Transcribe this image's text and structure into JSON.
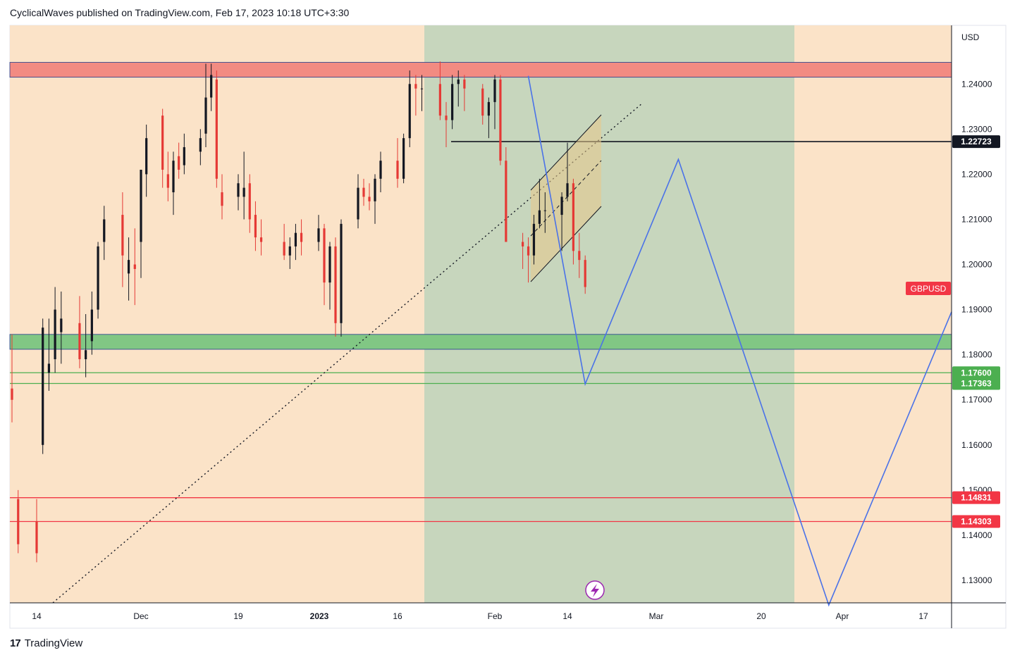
{
  "header": {
    "publisher_line": "CyclicalWaves published on TradingView.com, Feb 17, 2023 10:18 UTC+3:30"
  },
  "footer": {
    "brand": "TradingView",
    "logo_glyph": "17"
  },
  "chart_data": {
    "type": "candlestick",
    "symbol": "GBPUSD",
    "currency": "USD",
    "y_range": [
      1.125,
      1.253
    ],
    "y_ticks": [
      "1.24000",
      "1.23000",
      "1.22000",
      "1.21000",
      "1.20000",
      "1.19000",
      "1.18000",
      "1.17000",
      "1.16000",
      "1.15000",
      "1.14000",
      "1.13000"
    ],
    "x_ticks": [
      "14",
      "Dec",
      "19",
      "2023",
      "16",
      "Feb",
      "14",
      "Mar",
      "20",
      "Apr",
      "17"
    ],
    "x_tick_bold": [
      "2023"
    ],
    "price_labels": [
      {
        "value": "1.22723",
        "color": "#131722"
      },
      {
        "value": "1.17600",
        "color": "#4caf50"
      },
      {
        "value": "1.17363",
        "color": "#4caf50"
      },
      {
        "value": "1.14831",
        "color": "#f23645"
      },
      {
        "value": "1.14303",
        "color": "#f23645"
      }
    ],
    "symbol_badge_color": "#f23645",
    "zones": [
      {
        "name": "resistance",
        "from": 1.2415,
        "to": 1.2448,
        "color": "#f28b82"
      },
      {
        "name": "support",
        "from": 1.1812,
        "to": 1.1845,
        "color": "#81c784"
      }
    ],
    "horizontal_lines": [
      {
        "value": 1.22723,
        "color": "#131722"
      },
      {
        "value": 1.176,
        "color": "#4caf50"
      },
      {
        "value": 1.17363,
        "color": "#4caf50"
      },
      {
        "value": 1.14831,
        "color": "#f23645"
      },
      {
        "value": 1.14303,
        "color": "#f23645"
      }
    ],
    "projection_path": [
      {
        "t": "Feb 7",
        "price": 1.2418
      },
      {
        "t": "Feb 17",
        "price": 1.1735
      },
      {
        "t": "Mar 5",
        "price": 1.2233
      },
      {
        "t": "Mar 30",
        "price": 1.1245
      },
      {
        "t": "Apr 22",
        "price": 1.1895
      }
    ],
    "candles": [
      {
        "d": "Nov 10",
        "o": 1.1725,
        "h": 1.1845,
        "l": 1.165,
        "c": 1.17
      },
      {
        "d": "Nov 11",
        "o": 1.148,
        "h": 1.15,
        "l": 1.136,
        "c": 1.138
      },
      {
        "d": "Nov 14",
        "o": 1.143,
        "h": 1.148,
        "l": 1.134,
        "c": 1.136
      },
      {
        "d": "Nov 15",
        "o": 1.16,
        "h": 1.188,
        "l": 1.158,
        "c": 1.186
      },
      {
        "d": "Nov 16",
        "o": 1.176,
        "h": 1.188,
        "l": 1.172,
        "c": 1.178
      },
      {
        "d": "Nov 17",
        "o": 1.179,
        "h": 1.195,
        "l": 1.176,
        "c": 1.19
      },
      {
        "d": "Nov 18",
        "o": 1.185,
        "h": 1.194,
        "l": 1.178,
        "c": 1.188
      },
      {
        "d": "Nov 21",
        "o": 1.187,
        "h": 1.193,
        "l": 1.177,
        "c": 1.179
      },
      {
        "d": "Nov 22",
        "o": 1.179,
        "h": 1.189,
        "l": 1.175,
        "c": 1.181
      },
      {
        "d": "Nov 23",
        "o": 1.183,
        "h": 1.194,
        "l": 1.18,
        "c": 1.19
      },
      {
        "d": "Nov 24",
        "o": 1.19,
        "h": 1.205,
        "l": 1.188,
        "c": 1.204
      },
      {
        "d": "Nov 25",
        "o": 1.205,
        "h": 1.213,
        "l": 1.201,
        "c": 1.21
      },
      {
        "d": "Nov 28",
        "o": 1.211,
        "h": 1.216,
        "l": 1.195,
        "c": 1.202
      },
      {
        "d": "Nov 29",
        "o": 1.198,
        "h": 1.206,
        "l": 1.192,
        "c": 1.201
      },
      {
        "d": "Nov 30",
        "o": 1.2,
        "h": 1.208,
        "l": 1.191,
        "c": 1.199
      },
      {
        "d": "Dec 1",
        "o": 1.205,
        "h": 1.221,
        "l": 1.197,
        "c": 1.221
      },
      {
        "d": "Dec 2",
        "o": 1.22,
        "h": 1.231,
        "l": 1.215,
        "c": 1.228
      },
      {
        "d": "Dec 5",
        "o": 1.233,
        "h": 1.2345,
        "l": 1.217,
        "c": 1.221
      },
      {
        "d": "Dec 6",
        "o": 1.22,
        "h": 1.225,
        "l": 1.214,
        "c": 1.217
      },
      {
        "d": "Dec 7",
        "o": 1.216,
        "h": 1.225,
        "l": 1.211,
        "c": 1.223
      },
      {
        "d": "Dec 8",
        "o": 1.224,
        "h": 1.227,
        "l": 1.219,
        "c": 1.221
      },
      {
        "d": "Dec 9",
        "o": 1.222,
        "h": 1.229,
        "l": 1.22,
        "c": 1.226
      },
      {
        "d": "Dec 12",
        "o": 1.225,
        "h": 1.23,
        "l": 1.222,
        "c": 1.228
      },
      {
        "d": "Dec 13",
        "o": 1.229,
        "h": 1.2445,
        "l": 1.226,
        "c": 1.237
      },
      {
        "d": "Dec 14",
        "o": 1.237,
        "h": 1.2445,
        "l": 1.234,
        "c": 1.242
      },
      {
        "d": "Dec 15",
        "o": 1.241,
        "h": 1.243,
        "l": 1.217,
        "c": 1.219
      },
      {
        "d": "Dec 16",
        "o": 1.216,
        "h": 1.22,
        "l": 1.21,
        "c": 1.213
      },
      {
        "d": "Dec 19",
        "o": 1.215,
        "h": 1.22,
        "l": 1.212,
        "c": 1.218
      },
      {
        "d": "Dec 20",
        "o": 1.215,
        "h": 1.225,
        "l": 1.21,
        "c": 1.217
      },
      {
        "d": "Dec 21",
        "o": 1.218,
        "h": 1.22,
        "l": 1.207,
        "c": 1.21
      },
      {
        "d": "Dec 22",
        "o": 1.211,
        "h": 1.214,
        "l": 1.203,
        "c": 1.206
      },
      {
        "d": "Dec 23",
        "o": 1.206,
        "h": 1.21,
        "l": 1.202,
        "c": 1.205
      },
      {
        "d": "Dec 27",
        "o": 1.205,
        "h": 1.209,
        "l": 1.201,
        "c": 1.202
      },
      {
        "d": "Dec 28",
        "o": 1.202,
        "h": 1.206,
        "l": 1.199,
        "c": 1.204
      },
      {
        "d": "Dec 29",
        "o": 1.204,
        "h": 1.209,
        "l": 1.201,
        "c": 1.207
      },
      {
        "d": "Dec 30",
        "o": 1.207,
        "h": 1.21,
        "l": 1.202,
        "c": 1.205
      },
      {
        "d": "Jan 2",
        "o": 1.205,
        "h": 1.211,
        "l": 1.203,
        "c": 1.208
      },
      {
        "d": "Jan 3",
        "o": 1.208,
        "h": 1.209,
        "l": 1.191,
        "c": 1.196
      },
      {
        "d": "Jan 4",
        "o": 1.196,
        "h": 1.205,
        "l": 1.19,
        "c": 1.204
      },
      {
        "d": "Jan 5",
        "o": 1.204,
        "h": 1.206,
        "l": 1.184,
        "c": 1.187
      },
      {
        "d": "Jan 6",
        "o": 1.187,
        "h": 1.21,
        "l": 1.184,
        "c": 1.209
      },
      {
        "d": "Jan 9",
        "o": 1.21,
        "h": 1.22,
        "l": 1.208,
        "c": 1.217
      },
      {
        "d": "Jan 10",
        "o": 1.217,
        "h": 1.219,
        "l": 1.213,
        "c": 1.215
      },
      {
        "d": "Jan 11",
        "o": 1.215,
        "h": 1.218,
        "l": 1.212,
        "c": 1.214
      },
      {
        "d": "Jan 12",
        "o": 1.214,
        "h": 1.22,
        "l": 1.209,
        "c": 1.219
      },
      {
        "d": "Jan 13",
        "o": 1.219,
        "h": 1.225,
        "l": 1.216,
        "c": 1.223
      },
      {
        "d": "Jan 16",
        "o": 1.223,
        "h": 1.228,
        "l": 1.217,
        "c": 1.219
      },
      {
        "d": "Jan 17",
        "o": 1.219,
        "h": 1.229,
        "l": 1.218,
        "c": 1.228
      },
      {
        "d": "Jan 18",
        "o": 1.228,
        "h": 1.243,
        "l": 1.226,
        "c": 1.24
      },
      {
        "d": "Jan 19",
        "o": 1.24,
        "h": 1.242,
        "l": 1.233,
        "c": 1.239
      },
      {
        "d": "Jan 20",
        "o": 1.239,
        "h": 1.242,
        "l": 1.234,
        "c": 1.239
      },
      {
        "d": "Jan 23",
        "o": 1.24,
        "h": 1.245,
        "l": 1.232,
        "c": 1.233
      },
      {
        "d": "Jan 24",
        "o": 1.233,
        "h": 1.236,
        "l": 1.226,
        "c": 1.232
      },
      {
        "d": "Jan 25",
        "o": 1.232,
        "h": 1.242,
        "l": 1.23,
        "c": 1.24
      },
      {
        "d": "Jan 26",
        "o": 1.24,
        "h": 1.243,
        "l": 1.235,
        "c": 1.241
      },
      {
        "d": "Jan 27",
        "o": 1.241,
        "h": 1.242,
        "l": 1.234,
        "c": 1.239
      },
      {
        "d": "Jan 30",
        "o": 1.239,
        "h": 1.24,
        "l": 1.231,
        "c": 1.233
      },
      {
        "d": "Jan 31",
        "o": 1.233,
        "h": 1.237,
        "l": 1.228,
        "c": 1.236
      },
      {
        "d": "Feb 1",
        "o": 1.236,
        "h": 1.242,
        "l": 1.23,
        "c": 1.241
      },
      {
        "d": "Feb 2",
        "o": 1.241,
        "h": 1.242,
        "l": 1.222,
        "c": 1.223
      },
      {
        "d": "Feb 3",
        "o": 1.223,
        "h": 1.226,
        "l": 1.205,
        "c": 1.205
      },
      {
        "d": "Feb 6",
        "o": 1.205,
        "h": 1.207,
        "l": 1.199,
        "c": 1.204
      },
      {
        "d": "Feb 7",
        "o": 1.204,
        "h": 1.206,
        "l": 1.196,
        "c": 1.202
      },
      {
        "d": "Feb 8",
        "o": 1.202,
        "h": 1.211,
        "l": 1.2,
        "c": 1.209
      },
      {
        "d": "Feb 9",
        "o": 1.209,
        "h": 1.219,
        "l": 1.208,
        "c": 1.212
      },
      {
        "d": "Feb 10",
        "o": 1.212,
        "h": 1.216,
        "l": 1.207,
        "c": 1.212
      },
      {
        "d": "Feb 13",
        "o": 1.211,
        "h": 1.216,
        "l": 1.203,
        "c": 1.215
      },
      {
        "d": "Feb 14",
        "o": 1.215,
        "h": 1.227,
        "l": 1.214,
        "c": 1.218
      },
      {
        "d": "Feb 15",
        "o": 1.218,
        "h": 1.219,
        "l": 1.2,
        "c": 1.203
      },
      {
        "d": "Feb 16",
        "o": 1.203,
        "h": 1.207,
        "l": 1.197,
        "c": 1.201
      },
      {
        "d": "Feb 17",
        "o": 1.201,
        "h": 1.202,
        "l": 1.1935,
        "c": 1.195
      }
    ]
  }
}
